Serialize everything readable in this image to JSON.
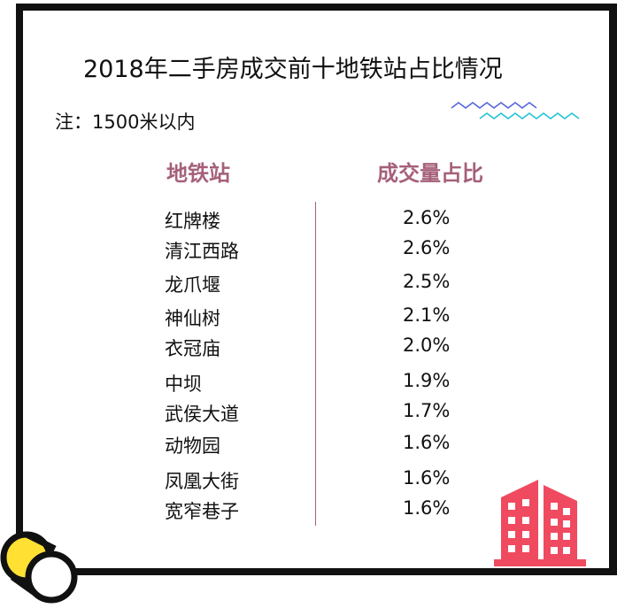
{
  "title": "2018年二手房成交前十地铁站占比情况",
  "note": "注：1500米以内",
  "colors": {
    "header": "#a5607a",
    "wave_top": "#5566dd",
    "wave_bottom": "#22c4d4",
    "building": "#f04a60",
    "circle_yellow": "#ffe033"
  },
  "chart_data": {
    "type": "table",
    "columns": [
      "地铁站",
      "成交量占比"
    ],
    "categories": [
      "红牌楼",
      "清江西路",
      "龙爪堰",
      "神仙树",
      "衣冠庙",
      "中坝",
      "武侯大道",
      "动物园",
      "凤凰大街",
      "宽窄巷子"
    ],
    "values": [
      2.6,
      2.6,
      2.5,
      2.1,
      2.0,
      1.9,
      1.7,
      1.6,
      1.6,
      1.6
    ],
    "value_labels": [
      "2.6%",
      "2.6%",
      "2.5%",
      "2.1%",
      "2.0%",
      "1.9%",
      "1.7%",
      "1.6%",
      "1.6%",
      "1.6%"
    ],
    "unit": "%"
  },
  "icons": [
    "wave-decoration-icon",
    "building-icon",
    "rolled-paper-icon"
  ]
}
